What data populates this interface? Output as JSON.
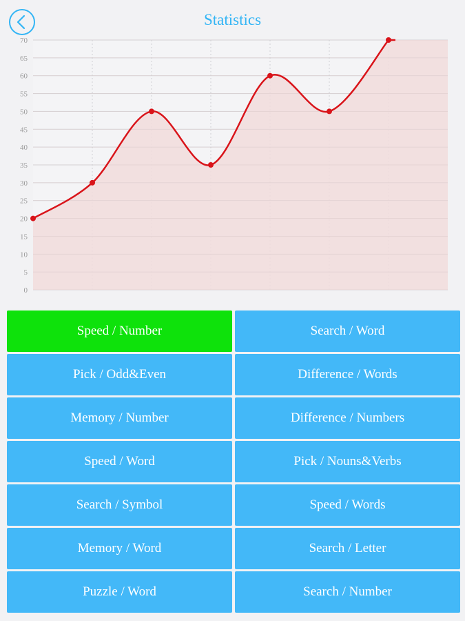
{
  "header": {
    "title": "Statistics",
    "back_icon": "chevron-left-icon",
    "accent_color": "#33b5f5"
  },
  "chart_data": {
    "type": "area",
    "title": "",
    "xlabel": "",
    "ylabel": "",
    "ylim": [
      0,
      70
    ],
    "yticks": [
      0,
      5,
      10,
      15,
      20,
      25,
      30,
      35,
      40,
      45,
      50,
      55,
      60,
      65,
      70
    ],
    "grid": true,
    "line_color": "#d9141a",
    "fill_color": "#f1dcdc",
    "x": [
      1,
      2,
      3,
      4,
      5,
      6,
      7
    ],
    "values": [
      20,
      30,
      50,
      35,
      60,
      50,
      70
    ]
  },
  "buttons": [
    {
      "label": "Speed / Number",
      "active": true
    },
    {
      "label": "Search / Word",
      "active": false
    },
    {
      "label": "Pick / Odd&Even",
      "active": false
    },
    {
      "label": "Difference / Words",
      "active": false
    },
    {
      "label": "Memory / Number",
      "active": false
    },
    {
      "label": "Difference / Numbers",
      "active": false
    },
    {
      "label": "Speed / Word",
      "active": false
    },
    {
      "label": "Pick / Nouns&Verbs",
      "active": false
    },
    {
      "label": "Search / Symbol",
      "active": false
    },
    {
      "label": "Speed / Words",
      "active": false
    },
    {
      "label": "Memory / Word",
      "active": false
    },
    {
      "label": "Search / Letter",
      "active": false
    },
    {
      "label": "Puzzle / Word",
      "active": false
    },
    {
      "label": "Search / Number",
      "active": false
    }
  ],
  "colors": {
    "button_bg": "#43b8f8",
    "button_active_bg": "#0ee20b",
    "button_text": "#ffffff"
  }
}
